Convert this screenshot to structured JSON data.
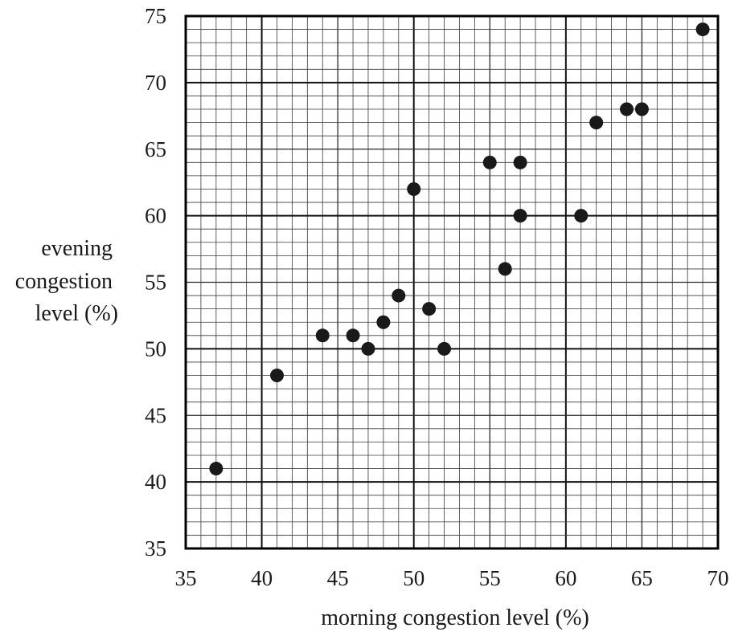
{
  "chart_data": {
    "type": "scatter",
    "title": "",
    "xlabel": "morning congestion level (%)",
    "ylabel_lines": [
      "evening",
      "congestion",
      "level (%)"
    ],
    "xlim": [
      35,
      70
    ],
    "ylim": [
      35,
      75
    ],
    "x_ticks": [
      35,
      40,
      45,
      50,
      55,
      60,
      65,
      70
    ],
    "y_ticks": [
      35,
      40,
      45,
      50,
      55,
      60,
      65,
      70,
      75
    ],
    "grid": true,
    "grid_minor_step": 1,
    "point_color": "#1a1a1a",
    "points": [
      {
        "x": 37,
        "y": 41
      },
      {
        "x": 41,
        "y": 48
      },
      {
        "x": 44,
        "y": 51
      },
      {
        "x": 46,
        "y": 51
      },
      {
        "x": 47,
        "y": 50
      },
      {
        "x": 48,
        "y": 52
      },
      {
        "x": 49,
        "y": 54
      },
      {
        "x": 50,
        "y": 62
      },
      {
        "x": 51,
        "y": 53
      },
      {
        "x": 52,
        "y": 50
      },
      {
        "x": 55,
        "y": 64
      },
      {
        "x": 56,
        "y": 56
      },
      {
        "x": 57,
        "y": 64
      },
      {
        "x": 57,
        "y": 60
      },
      {
        "x": 61,
        "y": 60
      },
      {
        "x": 62,
        "y": 67
      },
      {
        "x": 64,
        "y": 68
      },
      {
        "x": 65,
        "y": 68
      },
      {
        "x": 69,
        "y": 74
      }
    ]
  }
}
